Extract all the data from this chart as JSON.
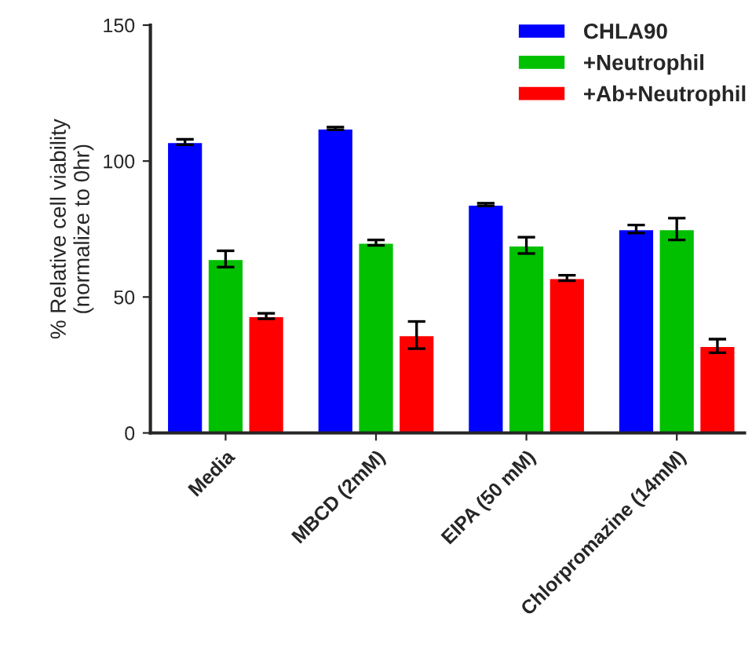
{
  "chart_data": {
    "type": "bar",
    "ylabel": "% Relative cell viability\n(normalize to 0hr)",
    "categories": [
      "Media",
      "MBCD (2mM)",
      "EIPA (50 mM)",
      "Chlorpromazine (14mM)"
    ],
    "series": [
      {
        "name": "CHLA90",
        "color": "#0000ff",
        "values": [
          107,
          112,
          84,
          75
        ],
        "errors": [
          1,
          0.5,
          0.5,
          1.5
        ]
      },
      {
        "name": "+Neutrophil",
        "color": "#00c000",
        "values": [
          64,
          70,
          69,
          75
        ],
        "errors": [
          3,
          1,
          3,
          4
        ]
      },
      {
        "name": "+Ab+Neutrophil",
        "color": "#ff0000",
        "values": [
          43,
          36,
          57,
          32
        ],
        "errors": [
          1,
          5,
          1,
          2.5
        ]
      }
    ],
    "ylim": [
      0,
      150
    ],
    "yticks": [
      0,
      50,
      100,
      150
    ],
    "legend": "top right",
    "grid": false
  }
}
